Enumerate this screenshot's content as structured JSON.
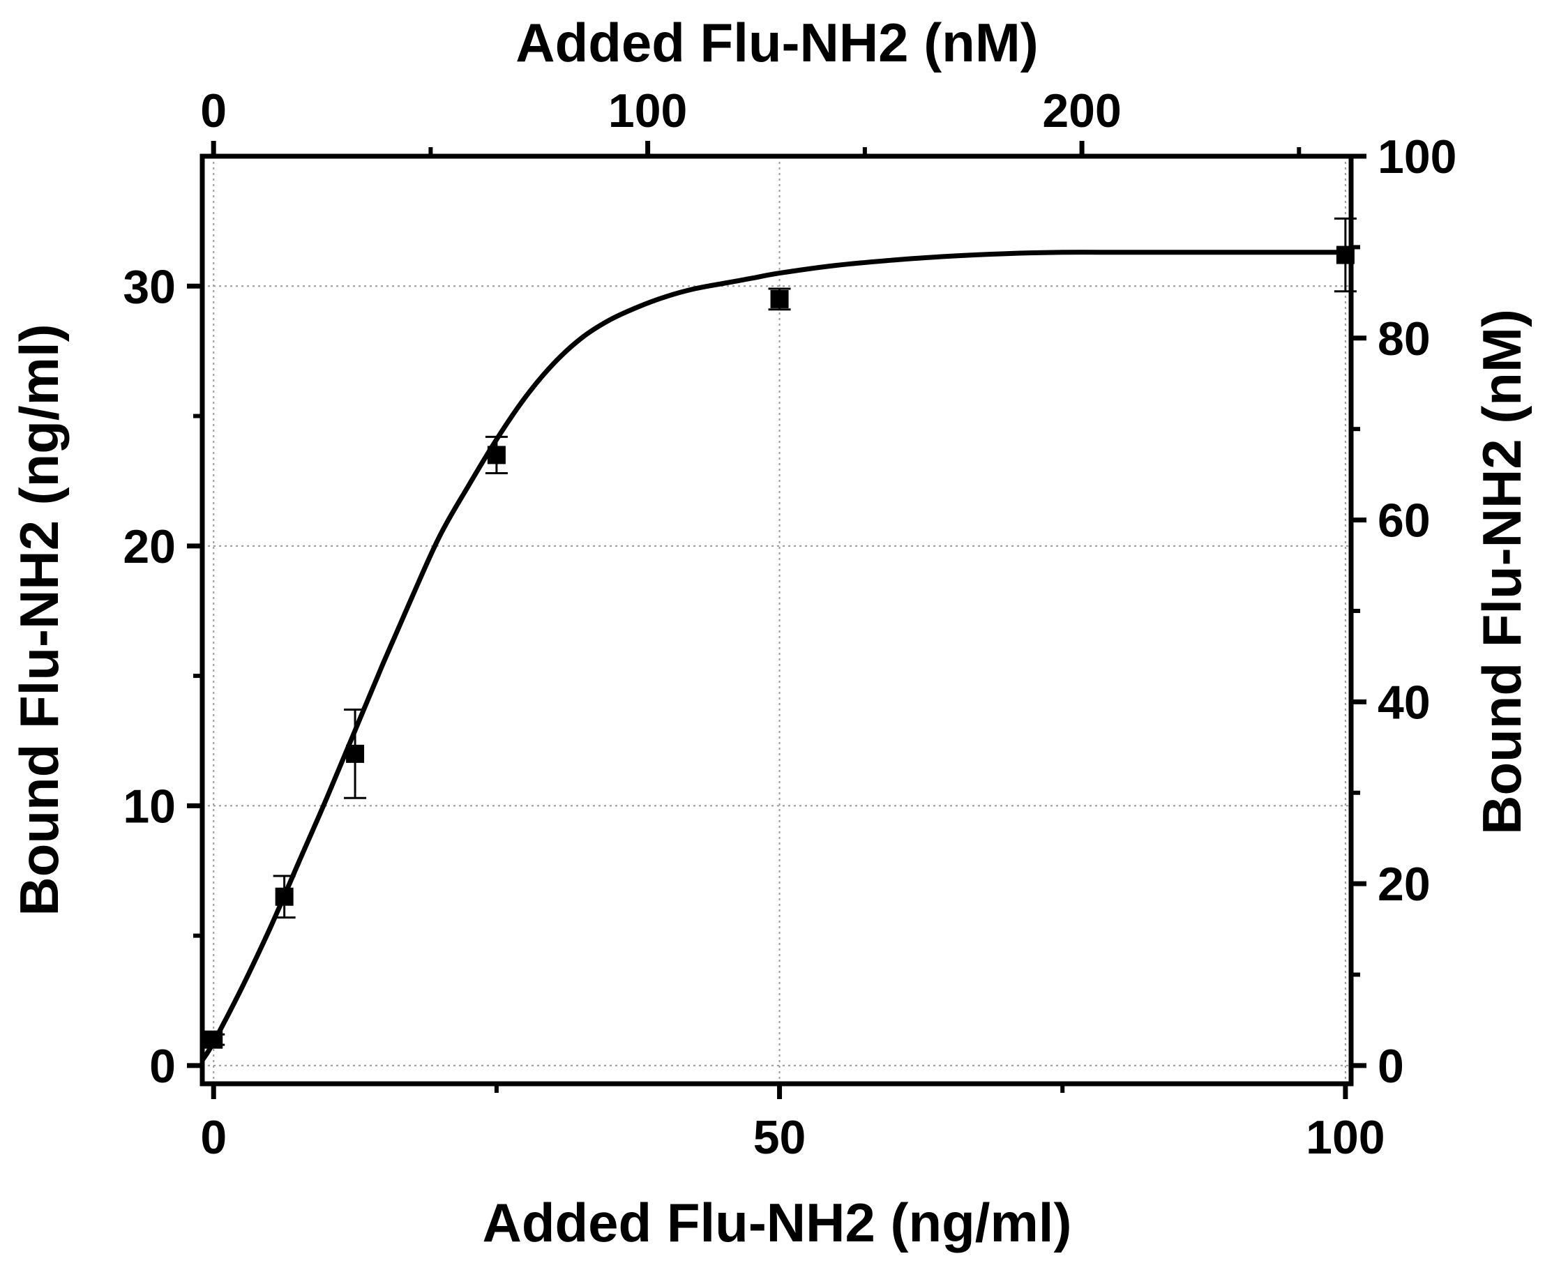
{
  "chart_data": {
    "type": "scatter",
    "title": "",
    "xlabel": "Added Flu-NH2 (ng/ml)",
    "ylabel": "Bound Flu-NH2 (ng/ml)",
    "x2label": "Added Flu-NH2 (nM)",
    "y2label": "Bound Flu-NH2 (nM)",
    "xlim": [
      -1,
      100.5
    ],
    "ylim": [
      -0.7,
      35
    ],
    "x2lim": [
      -2.6,
      262
    ],
    "y2lim": [
      -2.0,
      100
    ],
    "xticks": [
      "0",
      "50",
      "100"
    ],
    "yticks": [
      "0",
      "10",
      "20",
      "30"
    ],
    "x2ticks": [
      "0",
      "100",
      "200"
    ],
    "y2ticks": [
      "0",
      "20",
      "40",
      "60",
      "80",
      "100"
    ],
    "grid": true,
    "series": [
      {
        "kind": "points",
        "x": [
          0,
          6.25,
          12.5,
          25,
          50,
          100
        ],
        "y": [
          1.0,
          6.5,
          12.0,
          23.5,
          29.5,
          31.2
        ],
        "yerr": [
          0.2,
          0.8,
          1.7,
          0.7,
          0.4,
          1.4
        ]
      },
      {
        "kind": "fit",
        "x": [
          -1,
          0,
          2.5,
          5,
          7.5,
          10,
          12.5,
          15,
          17.5,
          20,
          22.5,
          25,
          27.5,
          30,
          32.5,
          35,
          37.5,
          40,
          42.5,
          45,
          47.5,
          50,
          55,
          60,
          65,
          70,
          75,
          80,
          85,
          90,
          95,
          100
        ],
        "y": [
          0.2,
          0.9,
          3.0,
          5.3,
          7.8,
          10.3,
          12.9,
          15.5,
          18.0,
          20.4,
          22.3,
          24.1,
          25.7,
          27.0,
          28.0,
          28.7,
          29.2,
          29.6,
          29.9,
          30.1,
          30.3,
          30.5,
          30.8,
          31.0,
          31.15,
          31.25,
          31.3,
          31.3,
          31.3,
          31.3,
          31.3,
          31.3
        ]
      }
    ]
  }
}
